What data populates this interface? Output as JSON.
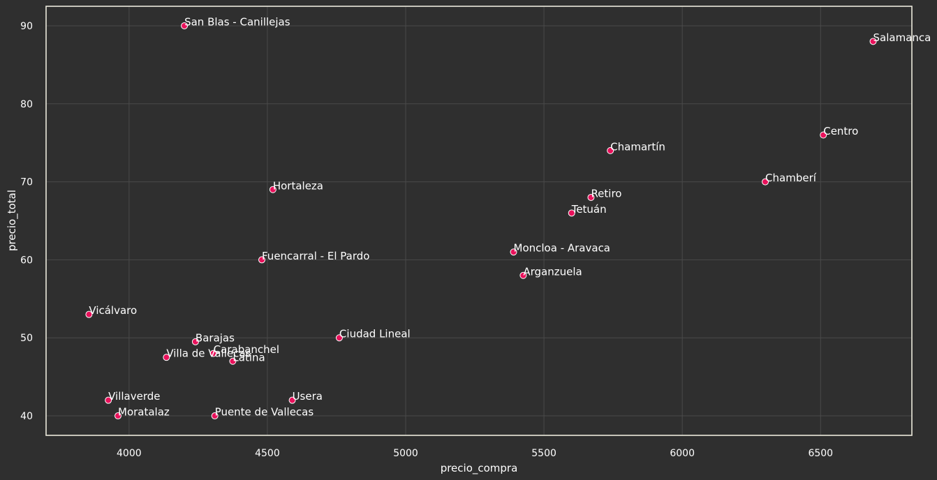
{
  "chart_data": {
    "type": "scatter",
    "title": "",
    "xlabel": "precio_compra",
    "ylabel": "precio_total",
    "xlim": [
      3700,
      6830
    ],
    "ylim": [
      37.5,
      92.5
    ],
    "xticks": [
      4000,
      4500,
      5000,
      5500,
      6000,
      6500
    ],
    "yticks": [
      40,
      50,
      60,
      70,
      80,
      90
    ],
    "grid": true,
    "legend": "none",
    "colors": {
      "point": "#e8115b",
      "background": "#2f2f2f",
      "text": "#ffffff",
      "grid": "#4a4a4a",
      "frame": "#ece9dc"
    },
    "points": [
      {
        "label": "San Blas - Canillejas",
        "x": 4200,
        "y": 90
      },
      {
        "label": "Salamanca",
        "x": 6690,
        "y": 88
      },
      {
        "label": "Centro",
        "x": 6510,
        "y": 76
      },
      {
        "label": "Chamartín",
        "x": 5740,
        "y": 74
      },
      {
        "label": "Chamberí",
        "x": 6300,
        "y": 70
      },
      {
        "label": "Hortaleza",
        "x": 4520,
        "y": 69
      },
      {
        "label": "Retiro",
        "x": 5670,
        "y": 68
      },
      {
        "label": "Tetuán",
        "x": 5600,
        "y": 66
      },
      {
        "label": "Moncloa - Aravaca",
        "x": 5390,
        "y": 61
      },
      {
        "label": "Fuencarral - El Pardo",
        "x": 4480,
        "y": 60
      },
      {
        "label": "Arganzuela",
        "x": 5425,
        "y": 58
      },
      {
        "label": "Vicálvaro",
        "x": 3855,
        "y": 53
      },
      {
        "label": "Ciudad Lineal",
        "x": 4760,
        "y": 50
      },
      {
        "label": "Barajas",
        "x": 4240,
        "y": 49.5
      },
      {
        "label": "Carabanchel",
        "x": 4305,
        "y": 48
      },
      {
        "label": "Villa de Vallecas",
        "x": 4135,
        "y": 47.5
      },
      {
        "label": "Latina",
        "x": 4375,
        "y": 47
      },
      {
        "label": "Villaverde",
        "x": 3925,
        "y": 42
      },
      {
        "label": "Usera",
        "x": 4590,
        "y": 42
      },
      {
        "label": "Moratalaz",
        "x": 3960,
        "y": 40
      },
      {
        "label": "Puente de Vallecas",
        "x": 4310,
        "y": 40
      }
    ]
  }
}
